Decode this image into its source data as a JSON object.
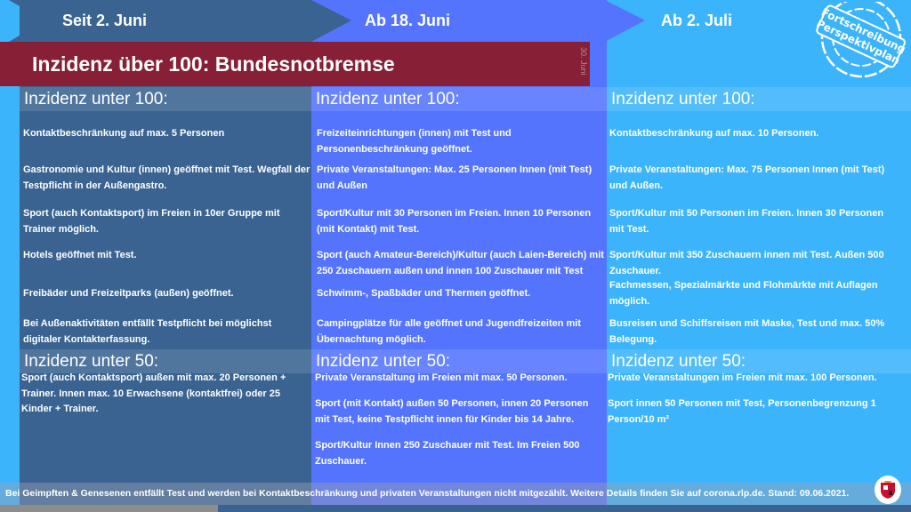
{
  "header": {
    "phases": [
      "Seit 2. Juni",
      "Ab 18. Juni",
      "Ab 2. Juli"
    ],
    "stamp": [
      "Fortschreibung",
      "Perspektivplan"
    ]
  },
  "banner": {
    "title": "Inzidenz über 100: Bundesnotbremse",
    "end_label": "30. Juni"
  },
  "columns": [
    {
      "heading100": "Inzidenz unter 100:",
      "items100": [
        "Kontaktbeschränkung auf max. 5 Personen",
        "Gastronomie und Kultur (innen) geöffnet mit Test. Wegfall der Testpflicht in der Außengastro.",
        "Sport (auch Kontaktsport) im Freien in 10er Gruppe mit Trainer möglich.",
        "Hotels geöffnet mit Test.",
        "Freibäder und Freizeitparks (außen) geöffnet.",
        "Bei Außenaktivitäten entfällt Testpflicht bei möglichst digitaler Kontakterfassung."
      ],
      "heading50": "Inzidenz unter 50:",
      "items50": [
        "Sport (auch Kontaktsport) außen mit max. 20 Personen + Trainer. Innen max. 10 Erwachsene (kontaktfrei) oder 25 Kinder + Trainer."
      ]
    },
    {
      "heading100": "Inzidenz unter 100:",
      "items100": [
        "Freizeiteinrichtungen (innen) mit Test und Personenbeschränkung geöffnet.",
        "Private Veranstaltungen: Max. 25 Personen Innen (mit Test) und Außen",
        "Sport/Kultur mit 30 Personen im Freien. Innen 10 Personen (mit Kontakt) mit Test.",
        "Sport (auch Amateur-Bereich)/Kultur (auch Laien-Bereich) mit 250 Zuschauern außen und innen 100 Zuschauer mit Test",
        "Schwimm-, Spaßbäder und Thermen geöffnet.",
        "Campingplätze für alle geöffnet und Jugendfreizeiten mit Übernachtung möglich."
      ],
      "heading50": "Inzidenz unter 50:",
      "items50": [
        "Private Veranstaltung im Freien mit max. 50 Personen.",
        "Sport (mit Kontakt) außen 50 Personen, innen 20 Personen mit Test, keine Testpflicht innen für Kinder bis 14 Jahre.",
        "Sport/Kultur Innen 250 Zuschauer mit Test. Im Freien 500 Zuschauer."
      ]
    },
    {
      "heading100": "Inzidenz unter 100:",
      "items100": [
        "Kontaktbeschränkung auf max. 10 Personen.",
        "Private Veranstaltungen: Max. 75 Personen Innen (mit Test) und Außen.",
        "Sport/Kultur mit 50 Personen im Freien. Innen 30 Personen mit Test.",
        "Sport/Kultur mit 350 Zuschauern innen mit Test. Außen 500 Zuschauer.",
        "Fachmessen, Spezialmärkte und Flohmärkte mit Auflagen möglich.",
        "Busreisen und Schiffsreisen mit Maske, Test und max. 50% Belegung."
      ],
      "heading50": "Inzidenz unter 50:",
      "items50": [
        "Private Veranstaltungen im Freien mit max. 100 Personen.",
        "Sport innen 50 Personen mit Test, Personenbegrenzung 1 Person/10 m²"
      ]
    }
  ],
  "footer": {
    "text": "Bei Geimpften & Genesenen entfällt Test und werden bei Kontaktbeschränkung und privaten Veranstaltungen nicht mitgezählt. Weitere Details finden Sie auf corona.rlp.de. Stand: 09.06.2021."
  },
  "colors": {
    "phase1": "#3a6391",
    "phase2": "#5474fe",
    "phase3": "#3cb4fb",
    "banner": "#871f36"
  }
}
